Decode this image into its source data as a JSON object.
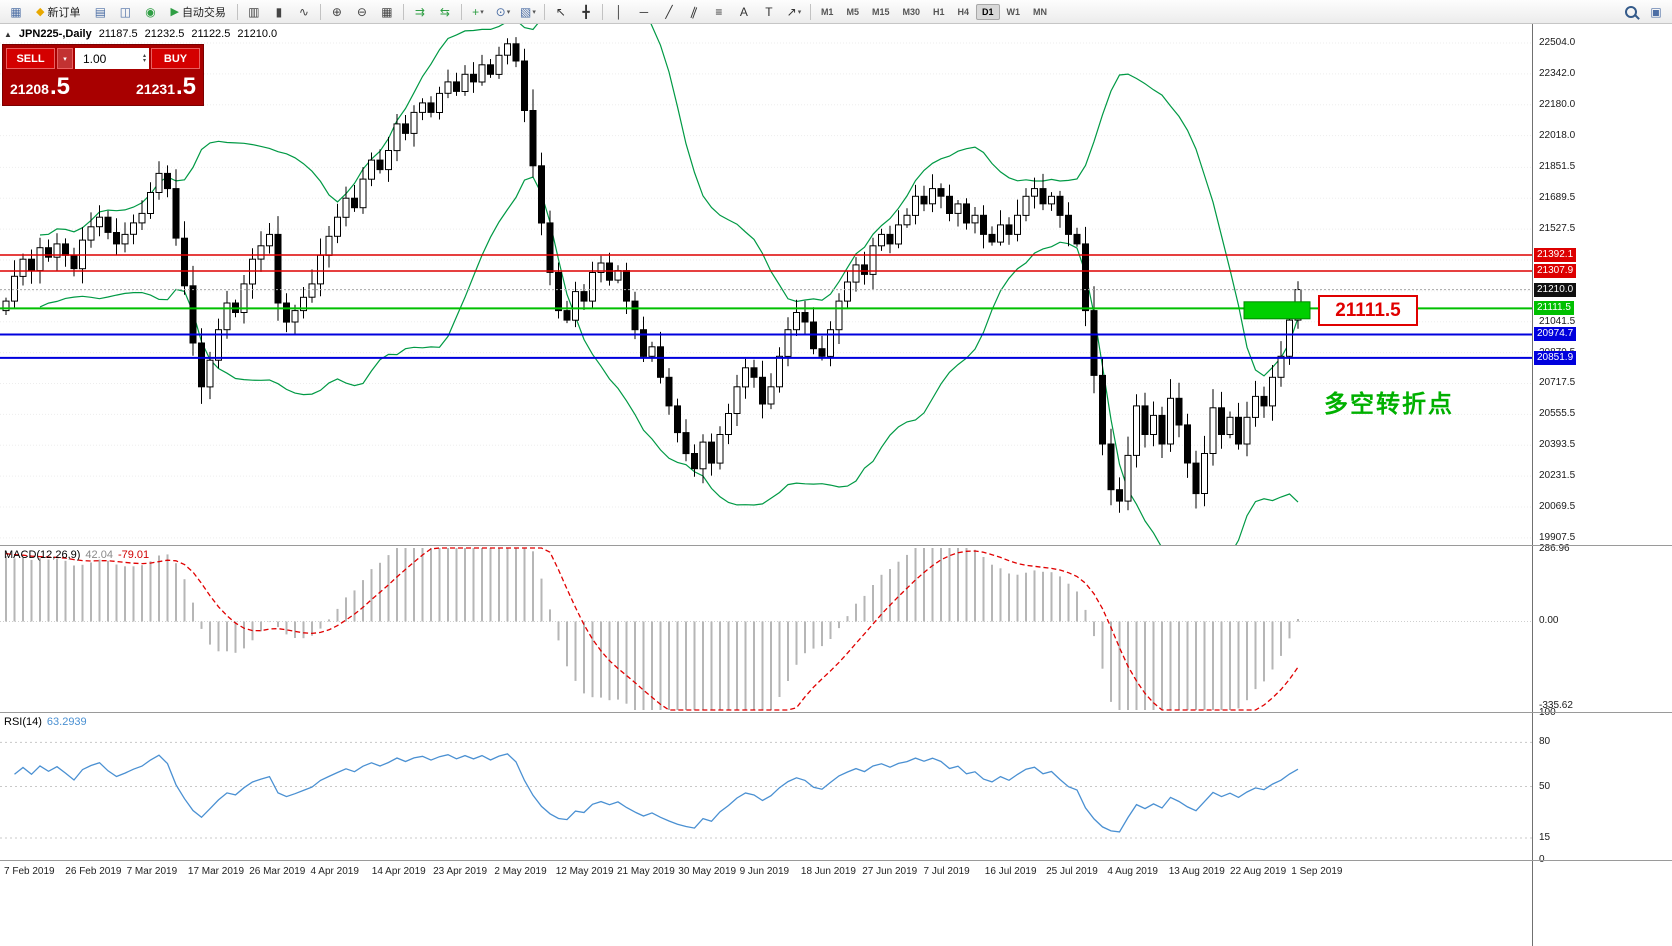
{
  "toolbar": {
    "groups": [
      {
        "items": [
          {
            "kind": "icon",
            "name": "new-chart-icon",
            "glyph": "▦",
            "color": "#4d6fa5"
          },
          {
            "kind": "labelbtn",
            "name": "new-order-button",
            "glyph": "◆",
            "glyph_color": "#e8a800",
            "label": "新订单"
          },
          {
            "kind": "icon",
            "name": "market-watch-icon",
            "glyph": "▤",
            "color": "#4d6fa5"
          },
          {
            "kind": "icon",
            "name": "data-window-icon",
            "glyph": "◫",
            "color": "#4d6fa5"
          },
          {
            "kind": "icon",
            "name": "navigator-icon",
            "glyph": "◉",
            "color": "#2f9e44"
          },
          {
            "kind": "labelbtn",
            "name": "auto-trading-button",
            "glyph": "▶",
            "glyph_color": "#2f9e44",
            "label": "自动交易"
          }
        ]
      },
      {
        "items": [
          {
            "kind": "icon",
            "name": "bar-chart-icon",
            "glyph": "▥",
            "color": "#444"
          },
          {
            "kind": "icon",
            "name": "candlestick-chart-icon",
            "glyph": "▮",
            "color": "#444"
          },
          {
            "kind": "icon",
            "name": "line-chart-icon",
            "glyph": "∿",
            "color": "#444"
          }
        ]
      },
      {
        "items": [
          {
            "kind": "icon",
            "name": "zoom-in-icon",
            "glyph": "⊕",
            "color": "#444"
          },
          {
            "kind": "icon",
            "name": "zoom-out-icon",
            "glyph": "⊖",
            "color": "#444"
          },
          {
            "kind": "icon",
            "name": "tile-windows-icon",
            "glyph": "▦",
            "color": "#444"
          }
        ]
      },
      {
        "items": [
          {
            "kind": "icon",
            "name": "auto-scroll-icon",
            "glyph": "⇉",
            "color": "#2f9e44"
          },
          {
            "kind": "icon",
            "name": "chart-shift-icon",
            "glyph": "⇆",
            "color": "#2f9e44"
          }
        ]
      },
      {
        "items": [
          {
            "kind": "icon",
            "name": "indicators-icon",
            "glyph": "+",
            "color": "#2f9e44",
            "caret": true
          },
          {
            "kind": "icon",
            "name": "periods-icon",
            "glyph": "⊙",
            "color": "#4d6fa5",
            "caret": true
          },
          {
            "kind": "icon",
            "name": "templates-icon",
            "glyph": "▧",
            "color": "#4d6fa5",
            "caret": true
          }
        ]
      },
      {
        "items": [
          {
            "kind": "icon",
            "name": "cursor-icon",
            "glyph": "↖",
            "color": "#333"
          },
          {
            "kind": "icon",
            "name": "crosshair-icon",
            "glyph": "╋",
            "color": "#333"
          }
        ]
      },
      {
        "items": [
          {
            "kind": "icon",
            "name": "vertical-line-icon",
            "glyph": "│",
            "color": "#333"
          },
          {
            "kind": "icon",
            "name": "horizontal-line-icon",
            "glyph": "─",
            "color": "#333"
          },
          {
            "kind": "icon",
            "name": "trendline-icon",
            "glyph": "╱",
            "color": "#333"
          },
          {
            "kind": "icon",
            "name": "channel-icon",
            "glyph": "∥",
            "color": "#333",
            "rotate": 20
          },
          {
            "kind": "icon",
            "name": "fibonacci-icon",
            "glyph": "≡",
            "color": "#333"
          },
          {
            "kind": "icon",
            "name": "text-icon",
            "glyph": "A",
            "color": "#333"
          },
          {
            "kind": "icon",
            "name": "text-label-icon",
            "glyph": "T",
            "color": "#333"
          },
          {
            "kind": "icon",
            "name": "arrows-icon",
            "glyph": "↗",
            "color": "#333",
            "caret": true
          }
        ]
      }
    ],
    "timeframes": {
      "items": [
        "M1",
        "M5",
        "M15",
        "M30",
        "H1",
        "H4",
        "D1",
        "W1",
        "MN"
      ],
      "active": "D1"
    },
    "right_items": [
      {
        "kind": "icon",
        "name": "search-symbol-icon",
        "css": "magnifier"
      },
      {
        "kind": "icon",
        "name": "chat-icon",
        "glyph": "▣",
        "color": "#4d6fa5"
      }
    ]
  },
  "symbol_info": {
    "collapse_arrow": "▲",
    "title": "JPN225-,Daily",
    "open": "21187.5",
    "high": "21232.5",
    "low": "21122.5",
    "close": "21210.0"
  },
  "trade_panel": {
    "sell_label": "SELL",
    "buy_label": "BUY",
    "volume": "1.00",
    "sell_price_int": "21208",
    "sell_price_dec": ".5",
    "buy_price_int": "21231",
    "buy_price_dec": ".5"
  },
  "annotations": {
    "level_label": "21111.5",
    "turning_point": "多空转折点"
  },
  "indicators": {
    "macd": {
      "label": "MACD(12,26,9)",
      "value_main": "42.04",
      "value_signal": "-79.01"
    },
    "rsi": {
      "label": "RSI(14)",
      "value": "63.2939"
    }
  },
  "axes": {
    "price_ticks": [
      "22504.0",
      "22342.0",
      "22180.0",
      "22018.0",
      "21851.5",
      "21689.5",
      "21527.5",
      "21365.5",
      "21203.5",
      "21041.5",
      "20879.5",
      "20717.5",
      "20555.5",
      "20393.5",
      "20231.5",
      "20069.5",
      "19907.5"
    ],
    "macd_ticks": [
      "286.96",
      "0.00",
      "-335.62"
    ],
    "rsi_ticks": [
      "100",
      "80",
      "50",
      "15",
      "0"
    ],
    "dates": [
      "7 Feb 2019",
      "26 Feb 2019",
      "7 Mar 2019",
      "17 Mar 2019",
      "26 Mar 2019",
      "4 Apr 2019",
      "14 Apr 2019",
      "23 Apr 2019",
      "2 May 2019",
      "12 May 2019",
      "21 May 2019",
      "30 May 2019",
      "9 Jun 2019",
      "18 Jun 2019",
      "27 Jun 2019",
      "7 Jul 2019",
      "16 Jul 2019",
      "25 Jul 2019",
      "4 Aug 2019",
      "13 Aug 2019",
      "22 Aug 2019",
      "1 Sep 2019"
    ]
  },
  "chart_data": {
    "type": "candlestick",
    "symbol": "JPN225-",
    "timeframe": "Daily",
    "price_range": [
      19870,
      22604
    ],
    "first_open": 21100,
    "closes": [
      21150,
      21280,
      21370,
      21310,
      21430,
      21380,
      21450,
      21390,
      21320,
      21470,
      21540,
      21590,
      21510,
      21450,
      21500,
      21560,
      21610,
      21720,
      21820,
      21740,
      21480,
      21230,
      20930,
      20700,
      20840,
      21000,
      21140,
      21090,
      21240,
      21370,
      21440,
      21500,
      21140,
      21040,
      21100,
      21170,
      21240,
      21390,
      21490,
      21590,
      21690,
      21640,
      21790,
      21890,
      21840,
      21940,
      22080,
      22030,
      22140,
      22190,
      22140,
      22240,
      22300,
      22250,
      22340,
      22300,
      22390,
      22340,
      22440,
      22500,
      22410,
      22150,
      21860,
      21560,
      21300,
      21100,
      21050,
      21200,
      21150,
      21300,
      21350,
      21260,
      21310,
      21150,
      21000,
      20860,
      20910,
      20750,
      20600,
      20460,
      20350,
      20270,
      20410,
      20300,
      20450,
      20560,
      20700,
      20800,
      20750,
      20610,
      20700,
      20860,
      21000,
      21090,
      21040,
      20900,
      20860,
      21000,
      21150,
      21250,
      21340,
      21290,
      21440,
      21500,
      21450,
      21550,
      21600,
      21700,
      21660,
      21740,
      21700,
      21610,
      21660,
      21560,
      21600,
      21500,
      21460,
      21550,
      21500,
      21600,
      21700,
      21740,
      21660,
      21700,
      21600,
      21500,
      21450,
      21100,
      20760,
      20400,
      20160,
      20100,
      20340,
      20600,
      20450,
      20550,
      20400,
      20640,
      20500,
      20300,
      20140,
      20350,
      20590,
      20450,
      20540,
      20400,
      20540,
      20650,
      20600,
      20750,
      20860,
      21050,
      21210
    ],
    "overlays": {
      "bollinger": {
        "period": 20,
        "deviation": 2,
        "color": "#009944"
      }
    },
    "levels": [
      {
        "price": 21392.1,
        "label": "21392.1",
        "color": "#dd0000",
        "line_width": 1.5,
        "style": "solid"
      },
      {
        "price": 21307.9,
        "label": "21307.9",
        "color": "#dd0000",
        "line_width": 1.5,
        "style": "solid"
      },
      {
        "price": 21210.0,
        "label": "21210.0",
        "color": "#101010",
        "line_width": 1,
        "style": "current"
      },
      {
        "price": 21111.5,
        "label": "21111.5",
        "color": "#00c000",
        "line_width": 2,
        "style": "solid"
      },
      {
        "price": 20974.7,
        "label": "20974.7",
        "color": "#0000dd",
        "line_width": 2,
        "style": "solid"
      },
      {
        "price": 20851.9,
        "label": "20851.9",
        "color": "#0000dd",
        "line_width": 2,
        "style": "solid"
      }
    ],
    "highlight_box": {
      "price_top": 21146,
      "price_bottom": 21057,
      "color": "#00cf00"
    },
    "macd": {
      "fast": 12,
      "slow": 26,
      "signal": 9,
      "range": [
        -335.62,
        286.96
      ],
      "current_main": 42.04,
      "current_signal": -79.01
    },
    "rsi": {
      "period": 14,
      "range": [
        0,
        100
      ],
      "levels": [
        80,
        50,
        15
      ],
      "current": 63.2939
    }
  }
}
